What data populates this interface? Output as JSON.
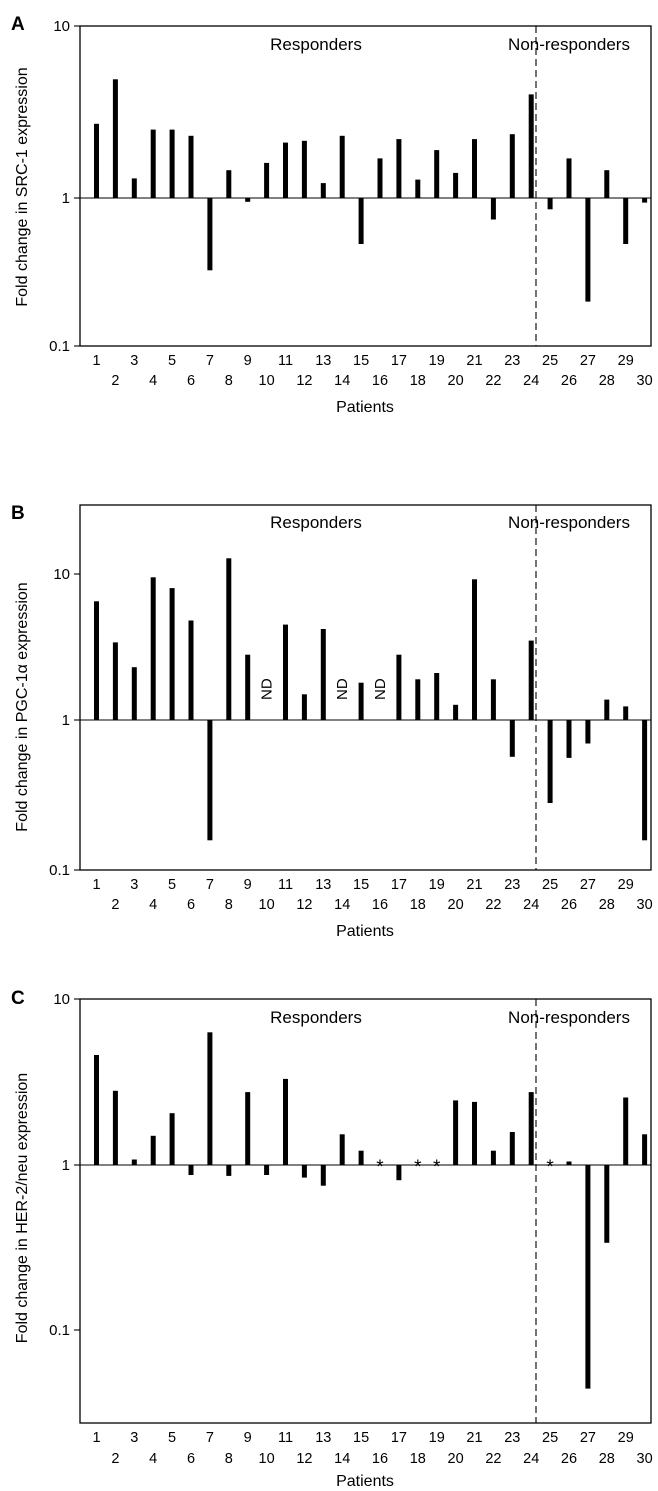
{
  "figure": {
    "panels": [
      {
        "letter": "A",
        "ylabel": "Fold change in SRC-1 expression",
        "xlabel": "Patients",
        "group_left": "Responders",
        "group_right": "Non-responders",
        "y_ticks": [
          "10",
          "1",
          "0.1"
        ]
      },
      {
        "letter": "B",
        "ylabel": "Fold change in PGC-1α expression",
        "xlabel": "Patients",
        "group_left": "Responders",
        "group_right": "Non-responders",
        "y_ticks": [
          "10",
          "1",
          "0.1"
        ]
      },
      {
        "letter": "C",
        "ylabel": "Fold change in HER-2/neu expression",
        "xlabel": "Patients",
        "group_left": "Responders",
        "group_right": "Non-responders",
        "y_ticks": [
          "10",
          "1",
          "0.1"
        ]
      }
    ],
    "nd_label": "ND",
    "asterisk_label": "*"
  },
  "chart_data": [
    {
      "type": "bar",
      "title": "",
      "xlabel": "Patients",
      "ylabel": "Fold change in SRC-1 expression",
      "yscale": "log",
      "baseline": 1,
      "ylim": [
        0.1,
        10
      ],
      "categories": [
        "1",
        "2",
        "3",
        "4",
        "5",
        "6",
        "7",
        "8",
        "9",
        "10",
        "11",
        "12",
        "13",
        "14",
        "15",
        "16",
        "17",
        "18",
        "19",
        "20",
        "21",
        "22",
        "23",
        "24",
        "25",
        "26",
        "27",
        "28",
        "29",
        "30"
      ],
      "values": [
        2.7,
        4.9,
        1.3,
        2.5,
        2.5,
        2.3,
        0.38,
        1.45,
        0.95,
        1.6,
        2.1,
        2.15,
        1.22,
        2.3,
        0.54,
        1.7,
        2.2,
        1.28,
        1.9,
        1.4,
        2.2,
        0.75,
        2.35,
        4.0,
        0.86,
        1.7,
        0.25,
        1.45,
        0.54,
        0.94
      ],
      "groups": [
        {
          "name": "Responders",
          "from": "1",
          "to": "24"
        },
        {
          "name": "Non-responders",
          "from": "25",
          "to": "30"
        }
      ]
    },
    {
      "type": "bar",
      "title": "",
      "xlabel": "Patients",
      "ylabel": "Fold change in PGC-1α expression",
      "yscale": "log",
      "baseline": 1,
      "ylim": [
        0.1,
        25
      ],
      "categories": [
        "1",
        "2",
        "3",
        "4",
        "5",
        "6",
        "7",
        "8",
        "9",
        "10",
        "11",
        "12",
        "13",
        "14",
        "15",
        "16",
        "17",
        "18",
        "19",
        "20",
        "21",
        "22",
        "23",
        "24",
        "25",
        "26",
        "27",
        "28",
        "29",
        "30"
      ],
      "values": [
        6.5,
        3.4,
        2.3,
        9.5,
        8.0,
        4.8,
        0.15,
        12.8,
        2.8,
        null,
        4.5,
        1.5,
        4.2,
        null,
        1.8,
        null,
        2.8,
        1.9,
        2.1,
        1.27,
        9.2,
        1.9,
        0.56,
        3.5,
        0.27,
        0.55,
        0.69,
        1.38,
        1.24,
        0.15
      ],
      "annotations": [
        {
          "category": "10",
          "text": "ND"
        },
        {
          "category": "14",
          "text": "ND"
        },
        {
          "category": "16",
          "text": "ND"
        }
      ],
      "groups": [
        {
          "name": "Responders",
          "from": "1",
          "to": "24"
        },
        {
          "name": "Non-responders",
          "from": "25",
          "to": "30"
        }
      ]
    },
    {
      "type": "bar",
      "title": "",
      "xlabel": "Patients",
      "ylabel": "Fold change in HER-2/neu expression",
      "yscale": "log",
      "baseline": 1,
      "ylim": [
        0.03,
        10
      ],
      "categories": [
        "1",
        "2",
        "3",
        "4",
        "5",
        "6",
        "7",
        "8",
        "9",
        "10",
        "11",
        "12",
        "13",
        "14",
        "15",
        "16",
        "17",
        "18",
        "19",
        "20",
        "21",
        "22",
        "23",
        "24",
        "25",
        "26",
        "27",
        "28",
        "29",
        "30"
      ],
      "values": [
        4.6,
        2.8,
        1.08,
        1.5,
        2.05,
        0.87,
        6.3,
        0.86,
        2.75,
        0.87,
        3.3,
        0.84,
        0.75,
        1.53,
        1.22,
        null,
        0.81,
        null,
        null,
        2.45,
        2.4,
        1.22,
        1.58,
        2.75,
        null,
        1.05,
        0.045,
        0.34,
        2.55,
        1.53
      ],
      "annotations": [
        {
          "category": "16",
          "text": "*"
        },
        {
          "category": "18",
          "text": "*"
        },
        {
          "category": "19",
          "text": "*"
        },
        {
          "category": "25",
          "text": "*"
        }
      ],
      "groups": [
        {
          "name": "Responders",
          "from": "1",
          "to": "24"
        },
        {
          "name": "Non-responders",
          "from": "25",
          "to": "30"
        }
      ]
    }
  ]
}
